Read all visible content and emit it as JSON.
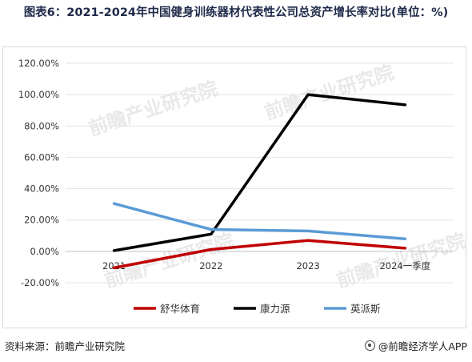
{
  "title": "图表6：2021-2024年中国健身训练器材代表性公司总资产增长率对比(单位：%)",
  "source_text": "资料来源：前瞻产业研究院",
  "brand_text": "@前瞻经济学人APP",
  "watermark_text": "前瞻产业研究院",
  "chart_data": {
    "type": "line",
    "title": "",
    "xlabel": "",
    "ylabel": "",
    "categories": [
      "2021",
      "2022",
      "2023",
      "2024一季度"
    ],
    "ylim": [
      -20,
      120
    ],
    "yticks": [
      -20,
      0,
      20,
      40,
      60,
      80,
      100,
      120
    ],
    "ytick_labels": [
      "-20.00%",
      "0.00%",
      "20.00%",
      "40.00%",
      "60.00%",
      "80.00%",
      "100.00%",
      "120.00%"
    ],
    "grid": true,
    "legend": "bottom",
    "series": [
      {
        "name": "舒华体育",
        "color": "#c00000",
        "values": [
          -10.5,
          1.2,
          7.0,
          2.0
        ]
      },
      {
        "name": "康力源",
        "color": "#000000",
        "values": [
          0.5,
          11.0,
          100.0,
          93.5
        ]
      },
      {
        "name": "英派斯",
        "color": "#5b9bd5",
        "values": [
          30.5,
          14.0,
          13.0,
          8.0
        ]
      }
    ]
  }
}
